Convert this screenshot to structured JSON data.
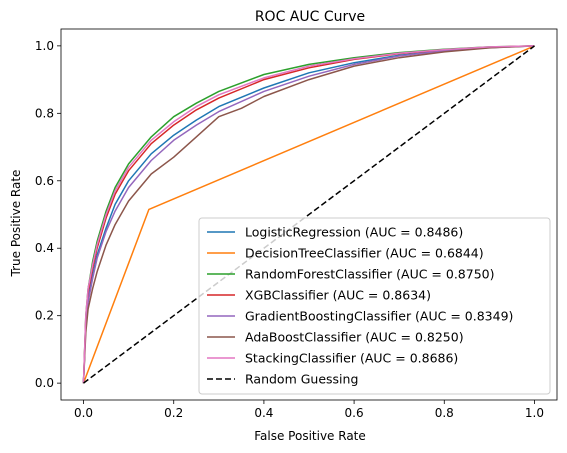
{
  "chart_data": {
    "type": "line",
    "title": "ROC AUC Curve",
    "xlabel": "False Positive Rate",
    "ylabel": "True Positive Rate",
    "xlim": [
      -0.05,
      1.05
    ],
    "ylim": [
      -0.05,
      1.05
    ],
    "xticks": [
      "0.0",
      "0.2",
      "0.4",
      "0.6",
      "0.8",
      "1.0"
    ],
    "yticks": [
      "0.0",
      "0.2",
      "0.4",
      "0.6",
      "0.8",
      "1.0"
    ],
    "grid": false,
    "legend_position": "lower-right",
    "series": [
      {
        "name": "LogisticRegression (AUC = 0.8486)",
        "color": "#1f77b4",
        "style": "solid",
        "x": [
          0,
          0.005,
          0.01,
          0.02,
          0.03,
          0.05,
          0.07,
          0.1,
          0.15,
          0.2,
          0.25,
          0.3,
          0.4,
          0.5,
          0.6,
          0.7,
          0.8,
          0.9,
          1.0
        ],
        "y": [
          0,
          0.18,
          0.25,
          0.32,
          0.38,
          0.46,
          0.53,
          0.6,
          0.68,
          0.735,
          0.78,
          0.82,
          0.875,
          0.92,
          0.95,
          0.972,
          0.985,
          0.995,
          1.0
        ]
      },
      {
        "name": "DecisionTreeClassifier (AUC = 0.6844)",
        "color": "#ff7f0e",
        "style": "solid",
        "x": [
          0,
          0.145,
          1.0
        ],
        "y": [
          0,
          0.515,
          1.0
        ]
      },
      {
        "name": "RandomForestClassifier (AUC = 0.8750)",
        "color": "#2ca02c",
        "style": "solid",
        "x": [
          0,
          0.005,
          0.01,
          0.02,
          0.03,
          0.05,
          0.07,
          0.1,
          0.15,
          0.2,
          0.25,
          0.3,
          0.4,
          0.5,
          0.6,
          0.7,
          0.8,
          0.9,
          1.0
        ],
        "y": [
          0,
          0.2,
          0.28,
          0.36,
          0.42,
          0.51,
          0.58,
          0.65,
          0.73,
          0.79,
          0.83,
          0.865,
          0.915,
          0.945,
          0.965,
          0.98,
          0.99,
          0.997,
          1.0
        ]
      },
      {
        "name": "XGBClassifier (AUC = 0.8634)",
        "color": "#d62728",
        "style": "solid",
        "x": [
          0,
          0.005,
          0.01,
          0.02,
          0.03,
          0.05,
          0.07,
          0.1,
          0.15,
          0.2,
          0.25,
          0.3,
          0.4,
          0.5,
          0.6,
          0.7,
          0.8,
          0.9,
          1.0
        ],
        "y": [
          0,
          0.19,
          0.27,
          0.34,
          0.4,
          0.49,
          0.56,
          0.63,
          0.71,
          0.765,
          0.81,
          0.845,
          0.9,
          0.935,
          0.96,
          0.977,
          0.988,
          0.996,
          1.0
        ]
      },
      {
        "name": "GradientBoostingClassifier (AUC = 0.8349)",
        "color": "#9467bd",
        "style": "solid",
        "x": [
          0,
          0.005,
          0.01,
          0.02,
          0.03,
          0.05,
          0.07,
          0.1,
          0.15,
          0.2,
          0.25,
          0.3,
          0.4,
          0.5,
          0.6,
          0.7,
          0.8,
          0.9,
          1.0
        ],
        "y": [
          0,
          0.17,
          0.24,
          0.31,
          0.37,
          0.45,
          0.51,
          0.58,
          0.66,
          0.72,
          0.765,
          0.805,
          0.865,
          0.91,
          0.945,
          0.97,
          0.985,
          0.995,
          1.0
        ]
      },
      {
        "name": "AdaBoostClassifier (AUC = 0.8250)",
        "color": "#8c564b",
        "style": "solid",
        "x": [
          0,
          0.005,
          0.01,
          0.02,
          0.03,
          0.05,
          0.07,
          0.1,
          0.15,
          0.2,
          0.25,
          0.3,
          0.35,
          0.4,
          0.5,
          0.6,
          0.7,
          0.8,
          0.9,
          1.0
        ],
        "y": [
          0,
          0.15,
          0.22,
          0.28,
          0.33,
          0.41,
          0.47,
          0.54,
          0.62,
          0.67,
          0.73,
          0.79,
          0.815,
          0.85,
          0.9,
          0.94,
          0.965,
          0.982,
          0.994,
          1.0
        ]
      },
      {
        "name": "StackingClassifier (AUC = 0.8686)",
        "color": "#e377c2",
        "style": "solid",
        "x": [
          0,
          0.005,
          0.01,
          0.02,
          0.03,
          0.05,
          0.07,
          0.1,
          0.15,
          0.2,
          0.25,
          0.3,
          0.4,
          0.5,
          0.6,
          0.7,
          0.8,
          0.9,
          1.0
        ],
        "y": [
          0,
          0.2,
          0.28,
          0.35,
          0.41,
          0.5,
          0.57,
          0.64,
          0.72,
          0.775,
          0.82,
          0.855,
          0.905,
          0.94,
          0.962,
          0.978,
          0.989,
          0.997,
          1.0
        ]
      },
      {
        "name": "Random Guessing",
        "color": "#000000",
        "style": "dashed",
        "x": [
          0,
          1
        ],
        "y": [
          0,
          1
        ]
      }
    ]
  }
}
